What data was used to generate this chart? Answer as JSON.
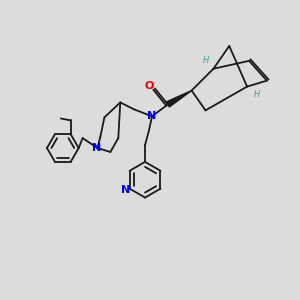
{
  "background_color": "#dcdcdc",
  "bond_color": "#1a1a1a",
  "N_color": "#0000ee",
  "O_color": "#ee0000",
  "H_color": "#4a9a9a",
  "figsize": [
    3.0,
    3.0
  ],
  "dpi": 100,
  "xlim": [
    0,
    300
  ],
  "ylim": [
    0,
    300
  ]
}
